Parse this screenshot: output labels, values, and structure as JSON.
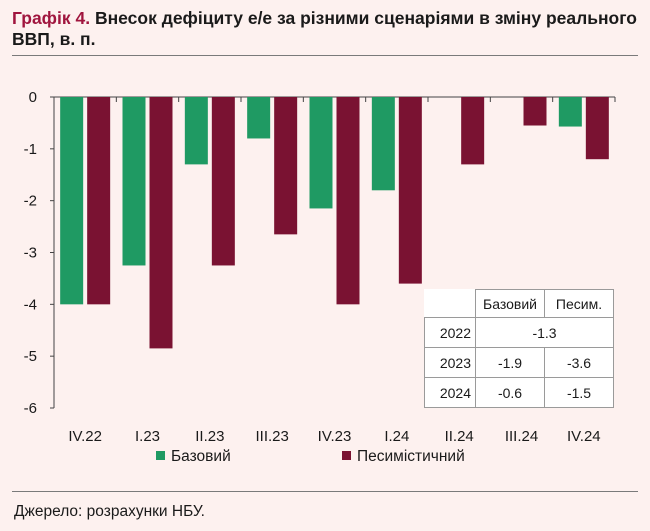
{
  "title": {
    "label": "Графік 4.",
    "text": "Внесок дефіциту е/е за різними сценаріями в зміну реального ВВП, в. п."
  },
  "source": "Джерело: розрахунки НБУ.",
  "colors": {
    "base": "#1f9a63",
    "pessimistic": "#7a1232"
  },
  "chart_data": {
    "type": "bar",
    "categories": [
      "IV.22",
      "I.23",
      "II.23",
      "III.23",
      "IV.23",
      "I.24",
      "II.24",
      "III.24",
      "IV.24"
    ],
    "series": [
      {
        "name": "Базовий",
        "values": [
          -4.0,
          -3.25,
          -1.3,
          -0.8,
          -2.15,
          -1.8,
          0,
          0,
          -0.57
        ]
      },
      {
        "name": "Песимістичний",
        "values": [
          -4.0,
          -4.85,
          -3.25,
          -2.65,
          -4.0,
          -3.6,
          -1.3,
          -0.55,
          -1.2
        ]
      }
    ],
    "ylim": [
      -6,
      0
    ],
    "yticks": [
      0,
      -1,
      -2,
      -3,
      -4,
      -5,
      -6
    ],
    "grid": false,
    "legend_position": "bottom"
  },
  "table": {
    "headers": [
      "Базовий",
      "Песим."
    ],
    "rows": [
      {
        "year": "2022",
        "merged": "-1.3"
      },
      {
        "year": "2023",
        "base": "-1.9",
        "pess": "-3.6"
      },
      {
        "year": "2024",
        "base": "-0.6",
        "pess": "-1.5"
      }
    ]
  }
}
